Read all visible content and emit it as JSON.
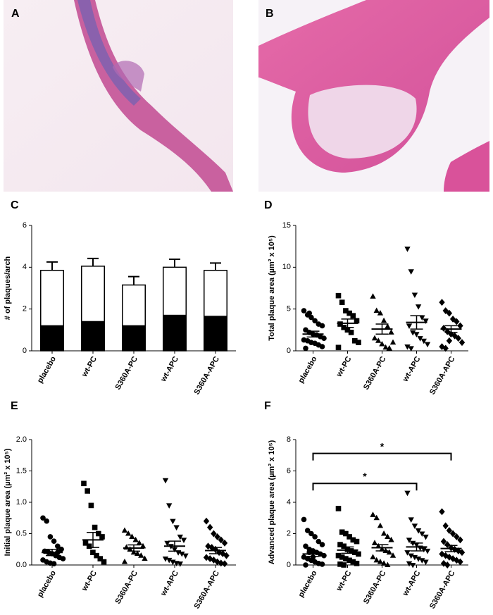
{
  "images": [
    {
      "label": "A"
    },
    {
      "label": "B"
    }
  ],
  "chart_data": [
    {
      "type": "bar",
      "panel": "C",
      "ylabel": "# of plaques/arch",
      "categories": [
        "placebo",
        "wt-PC",
        "S360A-PC",
        "wt-APC",
        "S360A-APC"
      ],
      "series": [
        {
          "color": "#000000",
          "values": [
            1.2,
            1.4,
            1.2,
            1.7,
            1.65
          ],
          "errors": [
            0.2,
            0.35,
            0.25,
            0.35,
            0.27
          ]
        },
        {
          "color": "#ffffff",
          "values": [
            2.65,
            2.65,
            1.95,
            2.3,
            2.2
          ],
          "errors": [
            0.4,
            0.37,
            0.4,
            0.38,
            0.35
          ]
        }
      ],
      "ylim": [
        0,
        6
      ],
      "yticks": [
        0,
        2,
        4,
        6
      ]
    },
    {
      "type": "dotplot",
      "panel": "D",
      "ylabel": "Total plaque area (µm² x 10⁵)",
      "categories": [
        "placebo",
        "wt-PC",
        "S360A-PC",
        "wt-APC",
        "S360A-APC"
      ],
      "markers": [
        "circle",
        "square",
        "triangle",
        "triangle-down",
        "diamond"
      ],
      "groups": [
        {
          "points": [
            4.8,
            4.3,
            4.0,
            3.6,
            3.2,
            3.0,
            2.5,
            2.2,
            2.0,
            1.9,
            1.7,
            1.5,
            1.3,
            1.2,
            1.0,
            0.9,
            0.7,
            0.5,
            0.3,
            4.5
          ],
          "mean": 2.0,
          "sem": 0.35
        },
        {
          "points": [
            6.6,
            5.8,
            4.8,
            4.5,
            4.2,
            3.6,
            3.2,
            2.8,
            2.5,
            2.2,
            1.2,
            1.0,
            0.4
          ],
          "mean": 3.3,
          "sem": 0.5
        },
        {
          "points": [
            6.5,
            4.8,
            4.5,
            3.6,
            2.9,
            2.2,
            1.5,
            1.2,
            0.8,
            0.4,
            0.3,
            1.0
          ],
          "mean": 2.6,
          "sem": 0.6
        },
        {
          "points": [
            12.2,
            9.5,
            6.7,
            5.3,
            4.0,
            3.6,
            3.0,
            2.2,
            2.0,
            1.5,
            1.2,
            0.8,
            0.5,
            0.3
          ],
          "mean": 3.4,
          "sem": 0.8
        },
        {
          "points": [
            5.8,
            4.8,
            4.5,
            3.8,
            3.5,
            3.0,
            2.7,
            2.3,
            2.0,
            1.8,
            1.5,
            1.0,
            0.5,
            0.3,
            1.2
          ],
          "mean": 2.6,
          "sem": 0.4
        }
      ],
      "ylim": [
        0,
        15
      ],
      "yticks": [
        0,
        5,
        10,
        15
      ]
    },
    {
      "type": "dotplot",
      "panel": "E",
      "ylabel": "Initial plaque area (µm² x 10⁵)",
      "categories": [
        "placebo",
        "wt-PC",
        "S360A-PC",
        "wt-APC",
        "S360A-APC"
      ],
      "markers": [
        "circle",
        "square",
        "triangle",
        "triangle-down",
        "diamond"
      ],
      "groups": [
        {
          "points": [
            0.75,
            0.7,
            0.45,
            0.38,
            0.3,
            0.25,
            0.22,
            0.2,
            0.18,
            0.15,
            0.12,
            0.1,
            0.08,
            0.05,
            0.03,
            0.02,
            0.2,
            0.25
          ],
          "mean": 0.2,
          "sem": 0.05
        },
        {
          "points": [
            1.3,
            1.18,
            0.95,
            0.6,
            0.5,
            0.45,
            0.35,
            0.3,
            0.2,
            0.15,
            0.1,
            0.05
          ],
          "mean": 0.4,
          "sem": 0.12
        },
        {
          "points": [
            0.55,
            0.5,
            0.45,
            0.4,
            0.35,
            0.3,
            0.28,
            0.25,
            0.2,
            0.18,
            0.15,
            0.1,
            0.05
          ],
          "mean": 0.27,
          "sem": 0.05
        },
        {
          "points": [
            1.35,
            0.95,
            0.7,
            0.6,
            0.45,
            0.4,
            0.35,
            0.3,
            0.25,
            0.2,
            0.18,
            0.15,
            0.1,
            0.08,
            0.05,
            0.03,
            0.02
          ],
          "mean": 0.3,
          "sem": 0.08
        },
        {
          "points": [
            0.7,
            0.6,
            0.5,
            0.45,
            0.4,
            0.35,
            0.3,
            0.28,
            0.25,
            0.2,
            0.18,
            0.15,
            0.12,
            0.1,
            0.08,
            0.05,
            0.03,
            0.02
          ],
          "mean": 0.23,
          "sem": 0.05
        }
      ],
      "ylim": [
        0,
        2
      ],
      "yticks": [
        {
          "value": 0,
          "label": "0.0"
        },
        {
          "value": 0.5,
          "label": "0.5"
        },
        {
          "value": 1,
          "label": "1.0"
        },
        {
          "value": 1.5,
          "label": "1.5"
        },
        {
          "value": 2,
          "label": "2.0"
        }
      ]
    },
    {
      "type": "dotplot",
      "panel": "F",
      "ylabel": "Advanced plaque area (µm² x 10⁵)",
      "categories": [
        "placebo",
        "wt-PC",
        "S360A-PC",
        "wt-APC",
        "S360A-APC"
      ],
      "markers": [
        "circle",
        "square",
        "triangle",
        "triangle-down",
        "diamond"
      ],
      "groups": [
        {
          "points": [
            2.9,
            2.2,
            2.0,
            1.8,
            1.5,
            1.3,
            1.2,
            1.0,
            0.9,
            0.8,
            0.7,
            0.6,
            0.5,
            0.4,
            0.3,
            0.2,
            0.1,
            0.05,
            0.0,
            0.8,
            0.5
          ],
          "mean": 0.7,
          "sem": 0.15
        },
        {
          "points": [
            3.6,
            2.1,
            2.0,
            1.8,
            1.6,
            1.5,
            1.3,
            1.2,
            1.0,
            0.9,
            0.8,
            0.7,
            0.6,
            0.5,
            0.4,
            0.3,
            0.2,
            0.1,
            0.05,
            0.0
          ],
          "mean": 0.95,
          "sem": 0.2
        },
        {
          "points": [
            3.2,
            3.0,
            2.5,
            2.0,
            1.8,
            1.6,
            1.4,
            1.2,
            1.0,
            0.9,
            0.8,
            0.6,
            0.5,
            0.3,
            0.2,
            0.1,
            0.0
          ],
          "mean": 1.1,
          "sem": 0.2
        },
        {
          "points": [
            4.6,
            2.9,
            2.5,
            2.2,
            2.0,
            1.8,
            1.6,
            1.4,
            1.3,
            1.1,
            1.0,
            0.9,
            0.8,
            0.6,
            0.5,
            0.4,
            0.3,
            0.2,
            0.1,
            0.0
          ],
          "mean": 1.15,
          "sem": 0.25
        },
        {
          "points": [
            3.4,
            2.5,
            2.2,
            2.0,
            1.8,
            1.6,
            1.5,
            1.3,
            1.1,
            1.0,
            0.9,
            0.8,
            0.7,
            0.6,
            0.5,
            0.4,
            0.3,
            0.2,
            0.1,
            0.0
          ],
          "mean": 1.05,
          "sem": 0.2
        }
      ],
      "brackets": [
        {
          "from": 0,
          "to": 3,
          "label": "*"
        },
        {
          "from": 0,
          "to": 4,
          "label": "*"
        }
      ],
      "ylim": [
        0,
        8
      ],
      "yticks": [
        0,
        2,
        4,
        6,
        8
      ]
    }
  ]
}
